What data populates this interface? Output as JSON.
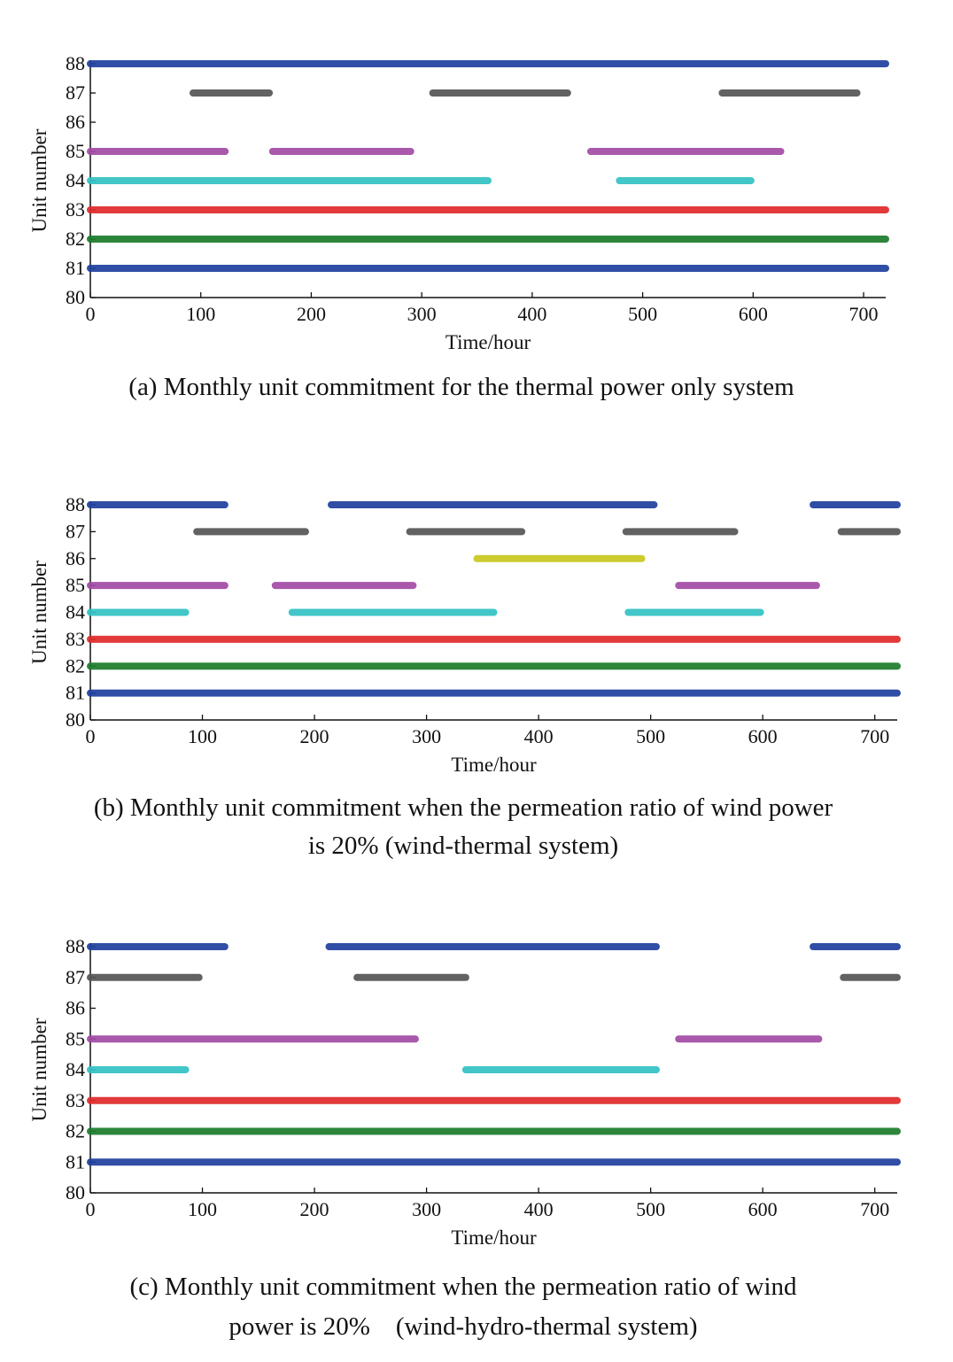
{
  "chart_data": [
    {
      "type": "gantt",
      "caption": [
        "(a) Monthly unit commitment for the thermal power only system"
      ],
      "xlabel": "Time/hour",
      "ylabel": "Unit number",
      "xlim": [
        0,
        720
      ],
      "ylim": [
        80,
        88
      ],
      "xticks": [
        0,
        100,
        200,
        300,
        400,
        500,
        600,
        700
      ],
      "yticks": [
        80,
        81,
        82,
        83,
        84,
        85,
        86,
        87,
        88
      ],
      "series": [
        {
          "unit": 88,
          "color": "#1f3f9e",
          "intervals": [
            [
              0,
              720
            ]
          ]
        },
        {
          "unit": 87,
          "color": "#555555",
          "intervals": [
            [
              93,
              162
            ],
            [
              310,
              432
            ],
            [
              572,
              694
            ]
          ]
        },
        {
          "unit": 85,
          "color": "#a24aa6",
          "intervals": [
            [
              0,
              122
            ],
            [
              165,
              290
            ],
            [
              453,
              625
            ]
          ]
        },
        {
          "unit": 84,
          "color": "#33c2c4",
          "intervals": [
            [
              0,
              360
            ],
            [
              479,
              598
            ]
          ]
        },
        {
          "unit": 83,
          "color": "#e02a2a",
          "intervals": [
            [
              0,
              720
            ]
          ]
        },
        {
          "unit": 82,
          "color": "#1c7c2c",
          "intervals": [
            [
              0,
              720
            ]
          ]
        },
        {
          "unit": 81,
          "color": "#1f3f9e",
          "intervals": [
            [
              0,
              720
            ]
          ]
        }
      ]
    },
    {
      "type": "gantt",
      "caption": [
        "(b) Monthly unit commitment when the permeation ratio of wind power",
        "is 20% (wind-thermal system)"
      ],
      "xlabel": "Time/hour",
      "ylabel": "Unit number",
      "xlim": [
        0,
        720
      ],
      "ylim": [
        80,
        88
      ],
      "xticks": [
        0,
        100,
        200,
        300,
        400,
        500,
        600,
        700
      ],
      "yticks": [
        80,
        81,
        82,
        83,
        84,
        85,
        86,
        87,
        88
      ],
      "series": [
        {
          "unit": 88,
          "color": "#1f3f9e",
          "intervals": [
            [
              0,
              120
            ],
            [
              215,
              503
            ],
            [
              645,
              720
            ]
          ]
        },
        {
          "unit": 87,
          "color": "#555555",
          "intervals": [
            [
              95,
              192
            ],
            [
              285,
              385
            ],
            [
              478,
              575
            ],
            [
              670,
              720
            ]
          ]
        },
        {
          "unit": 86,
          "color": "#c8c81e",
          "intervals": [
            [
              345,
              492
            ]
          ]
        },
        {
          "unit": 85,
          "color": "#a24aa6",
          "intervals": [
            [
              0,
              120
            ],
            [
              165,
              288
            ],
            [
              525,
              648
            ]
          ]
        },
        {
          "unit": 84,
          "color": "#33c2c4",
          "intervals": [
            [
              0,
              85
            ],
            [
              180,
              360
            ],
            [
              480,
              598
            ]
          ]
        },
        {
          "unit": 83,
          "color": "#e02a2a",
          "intervals": [
            [
              0,
              720
            ]
          ]
        },
        {
          "unit": 82,
          "color": "#1c7c2c",
          "intervals": [
            [
              0,
              720
            ]
          ]
        },
        {
          "unit": 81,
          "color": "#1f3f9e",
          "intervals": [
            [
              0,
              720
            ]
          ]
        }
      ]
    },
    {
      "type": "gantt",
      "caption": [
        "(c) Monthly unit commitment when the permeation ratio of wind",
        "power is 20%    (wind-hydro-thermal system)"
      ],
      "xlabel": "Time/hour",
      "ylabel": "Unit number",
      "xlim": [
        0,
        720
      ],
      "ylim": [
        80,
        88
      ],
      "xticks": [
        0,
        100,
        200,
        300,
        400,
        500,
        600,
        700
      ],
      "yticks": [
        80,
        81,
        82,
        83,
        84,
        85,
        86,
        87,
        88
      ],
      "series": [
        {
          "unit": 88,
          "color": "#1f3f9e",
          "intervals": [
            [
              0,
              120
            ],
            [
              213,
              505
            ],
            [
              645,
              720
            ]
          ]
        },
        {
          "unit": 87,
          "color": "#555555",
          "intervals": [
            [
              0,
              97
            ],
            [
              238,
              335
            ],
            [
              672,
              720
            ]
          ]
        },
        {
          "unit": 85,
          "color": "#a24aa6",
          "intervals": [
            [
              0,
              290
            ],
            [
              525,
              650
            ]
          ]
        },
        {
          "unit": 84,
          "color": "#33c2c4",
          "intervals": [
            [
              0,
              85
            ],
            [
              335,
              505
            ]
          ]
        },
        {
          "unit": 83,
          "color": "#e02a2a",
          "intervals": [
            [
              0,
              720
            ]
          ]
        },
        {
          "unit": 82,
          "color": "#1c7c2c",
          "intervals": [
            [
              0,
              720
            ]
          ]
        },
        {
          "unit": 81,
          "color": "#1f3f9e",
          "intervals": [
            [
              0,
              720
            ]
          ]
        }
      ]
    }
  ]
}
